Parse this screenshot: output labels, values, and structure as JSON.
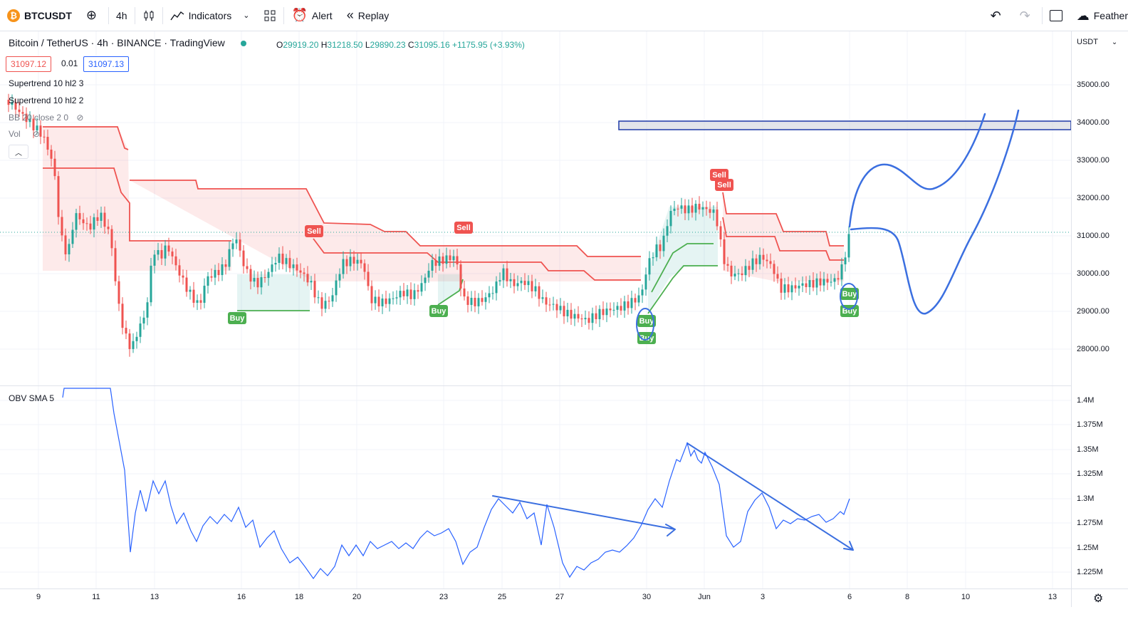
{
  "toolbar": {
    "symbol": "BTCUSDT",
    "symbol_icon": "₿",
    "interval": "4h",
    "indicators_label": "Indicators",
    "alert_label": "Alert",
    "replay_label": "Replay",
    "right_label": "Feather"
  },
  "legend": {
    "title": "Bitcoin / TetherUS · 4h · BINANCE · TradingView",
    "open_k": "O",
    "open": "29919.20",
    "high_k": "H",
    "high": "31218.50",
    "low_k": "L",
    "low": "29890.23",
    "close_k": "C",
    "close": "31095.16",
    "change": "+1175.95 (+3.93%)",
    "sell_price": "31097.12",
    "spread": "0.01",
    "buy_price": "31097.13"
  },
  "indicators": [
    {
      "label": "Supertrend 10 hl2 3"
    },
    {
      "label": "Supertrend 10 hl2 2"
    },
    {
      "label": "BB 20 close 2 0"
    },
    {
      "label": "Vol"
    }
  ],
  "obv_label": "OBV SMA 5",
  "price_axis": {
    "currency": "USDT",
    "ticks": [
      "35000.00",
      "34000.00",
      "33000.00",
      "32000.00",
      "31000.00",
      "30000.00",
      "29000.00",
      "28000.00"
    ],
    "obv_ticks": [
      "1.4M",
      "1.375M",
      "1.35M",
      "1.325M",
      "1.3M",
      "1.275M",
      "1.25M",
      "1.225M"
    ]
  },
  "time_axis": {
    "ticks": [
      "9",
      "11",
      "13",
      "16",
      "18",
      "20",
      "23",
      "25",
      "27",
      "30",
      "Jun",
      "3",
      "6",
      "8",
      "10",
      "13"
    ]
  },
  "signals": [
    "Buy",
    "Sell",
    "Buy",
    "Sell",
    "Buy",
    "Buy",
    "Sell",
    "Sell",
    "Buy",
    "Buy"
  ],
  "colors": {
    "up": "#26a69a",
    "down": "#ef5350",
    "accent": "#2962ff",
    "drawing": "#3b6fe0"
  }
}
